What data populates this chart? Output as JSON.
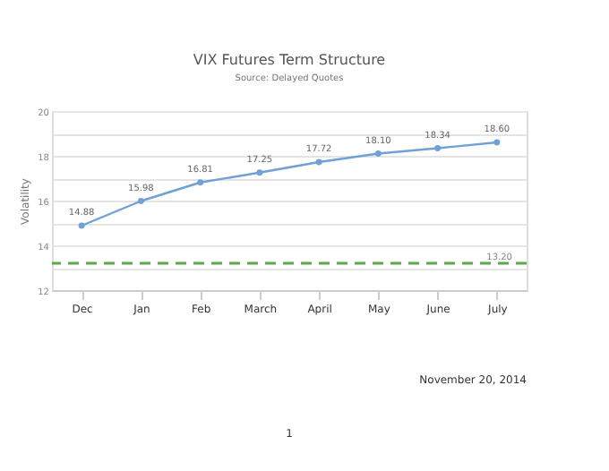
{
  "chart_data": {
    "type": "line",
    "title": "VIX Futures Term Structure",
    "subtitle": "Source: Delayed Quotes",
    "ylabel": "Volatility",
    "categories": [
      "Dec",
      "Jan",
      "Feb",
      "March",
      "April",
      "May",
      "June",
      "July"
    ],
    "series": [
      {
        "color": "#6fa0d8",
        "values": [
          14.88,
          15.98,
          16.81,
          17.25,
          17.72,
          18.1,
          18.34,
          18.6
        ]
      }
    ],
    "value_labels": [
      "14.88",
      "15.98",
      "16.81",
      "17.25",
      "17.72",
      "18.10",
      "18.34",
      "18.60"
    ],
    "ylim": [
      12,
      20
    ],
    "yticks": [
      12,
      {
        "value": 13,
        "label": null
      },
      14,
      {
        "value": 15,
        "label": null
      },
      16,
      {
        "value": 17,
        "label": null
      },
      18,
      {
        "value": 19,
        "label": null
      },
      20
    ],
    "ref_lines": [
      {
        "axis": "y",
        "value": 13.2,
        "label": "13.20",
        "color": "#5aa84a",
        "line_style": "dashed"
      }
    ],
    "grid": "y",
    "marker": "circle",
    "line_style": "solid",
    "annotations": [
      "November 20, 2014",
      "1"
    ]
  }
}
